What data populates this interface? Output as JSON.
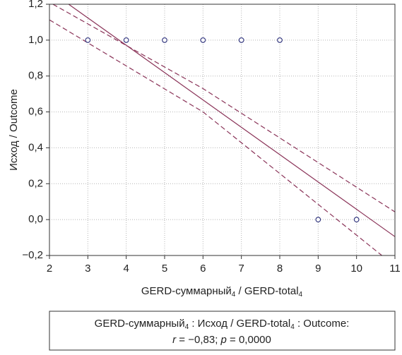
{
  "chart_data": {
    "type": "scatter",
    "y_label": "Исход / Outcome",
    "x_label": [
      "GERD-суммарный",
      "4",
      " / GERD-total",
      "4"
    ],
    "x": [
      3,
      4,
      5,
      6,
      7,
      8,
      9,
      10
    ],
    "values": [
      1,
      1,
      1,
      1,
      1,
      1,
      0,
      0
    ],
    "color": "#2b2f7a",
    "fit": {
      "color": "#8a3358",
      "x": [
        2.5,
        11
      ],
      "values": [
        1.2,
        -0.095
      ]
    },
    "band_upper": {
      "color": "#8a3358",
      "x": [
        2.09,
        6,
        11
      ],
      "values": [
        1.2,
        0.73,
        0.043
      ]
    },
    "band_lower": {
      "color": "#8a3358",
      "x": [
        2,
        6,
        10.66
      ],
      "values": [
        1.113,
        0.6,
        -0.2
      ]
    },
    "xlim": [
      2,
      11
    ],
    "ylim": [
      -0.2,
      1.2
    ],
    "xticks": [
      2,
      3,
      4,
      5,
      6,
      7,
      8,
      9,
      10,
      11
    ],
    "yticks": [
      {
        "value": -0.2,
        "label": "−0,2"
      },
      {
        "value": 0,
        "label": "0,0"
      },
      {
        "value": 0.2,
        "label": "0,2"
      },
      {
        "value": 0.4,
        "label": "0,4"
      },
      {
        "value": 0.6,
        "label": "0,6"
      },
      {
        "value": 0.8,
        "label": "0,8"
      },
      {
        "value": 1,
        "label": "1,0"
      },
      {
        "value": 1.2,
        "label": "1,2"
      }
    ],
    "grid": true,
    "caption": {
      "line1": [
        "GERD-суммарный",
        "4",
        " : Исход / GERD-total",
        "4",
        " : Outcome:"
      ],
      "line2": [
        "r",
        " = −0,83; ",
        "p",
        " = 0,0000"
      ]
    }
  }
}
